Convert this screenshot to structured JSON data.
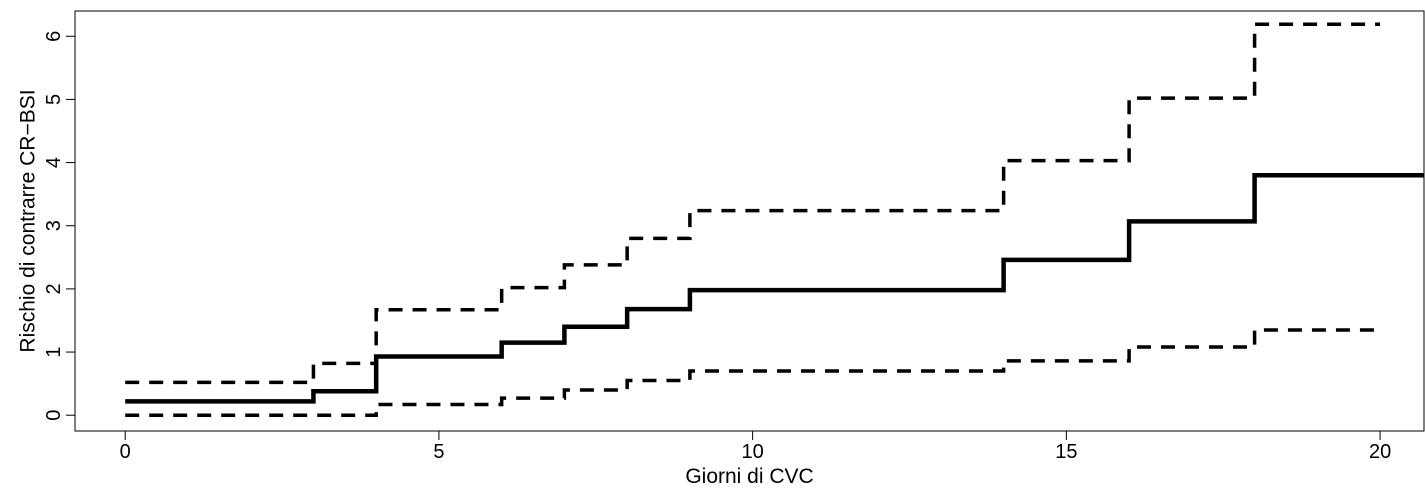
{
  "chart_data": {
    "type": "line",
    "step": true,
    "title": "",
    "xlabel": "Giorni di CVC",
    "ylabel": "Rischio di contrarre CR−BSI",
    "xlim": [
      -0.8,
      20.7
    ],
    "ylim": [
      -0.25,
      6.4
    ],
    "x_ticks": [
      0,
      5,
      10,
      15,
      20
    ],
    "y_ticks": [
      0,
      1,
      2,
      3,
      4,
      5,
      6
    ],
    "grid": false,
    "legend": "none",
    "series": [
      {
        "style": "solid",
        "color": "#000000",
        "x": [
          0,
          3,
          4,
          6,
          7,
          8,
          9,
          14,
          16,
          18,
          20.7
        ],
        "y": [
          0.22,
          0.38,
          0.93,
          1.15,
          1.4,
          1.68,
          1.98,
          2.46,
          3.07,
          3.8,
          3.8
        ]
      },
      {
        "style": "dashed",
        "color": "#000000",
        "x": [
          0,
          3,
          4,
          6,
          7,
          8,
          9,
          14,
          16,
          18,
          20
        ],
        "y": [
          0.52,
          0.82,
          1.67,
          2.02,
          2.38,
          2.8,
          3.24,
          4.03,
          5.02,
          6.19,
          6.19
        ]
      },
      {
        "style": "dashed",
        "color": "#000000",
        "x": [
          0,
          3,
          4,
          6,
          7,
          8,
          9,
          14,
          16,
          18,
          20
        ],
        "y": [
          0.0,
          0.0,
          0.17,
          0.27,
          0.4,
          0.55,
          0.7,
          0.86,
          1.08,
          1.35,
          1.35
        ]
      }
    ]
  }
}
